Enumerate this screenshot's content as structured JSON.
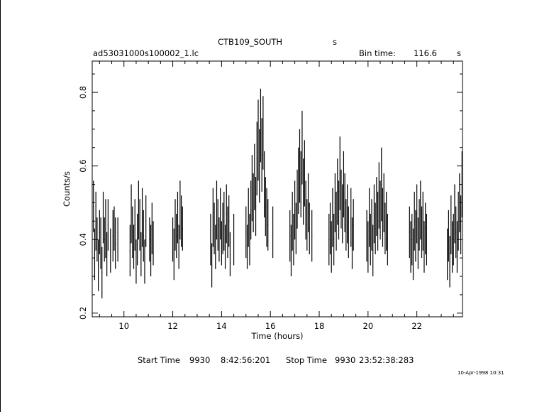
{
  "header": {
    "object": "CTB109_SOUTH",
    "object_unit": "s",
    "filename": "ad53031000s100002_1.lc",
    "bin_label": "Bin time:",
    "bin_value": "116.6",
    "bin_unit": "s"
  },
  "footer": {
    "start_label": "Start Time",
    "start_day": "9930",
    "start_time": "8:42:56:201",
    "stop_label": "Stop Time",
    "stop_day": "9930",
    "stop_time": "23:52:38:283",
    "plot_date": "10-Apr-1998 10:31"
  },
  "chart_data": {
    "type": "scatter",
    "xlabel": "Time (hours)",
    "ylabel": "Counts/s",
    "xlim": [
      8.7,
      23.87
    ],
    "ylim": [
      0.19,
      0.885
    ],
    "xticks": [
      10,
      12,
      14,
      16,
      18,
      20,
      22
    ],
    "yticks": [
      0.2,
      0.4,
      0.6,
      0.8
    ],
    "xtick_labels": [
      "10",
      "12",
      "14",
      "16",
      "18",
      "20",
      "22"
    ],
    "ytick_labels": [
      "0.2",
      "0.4",
      "0.6",
      "0.8"
    ],
    "error_bars": true,
    "grid": false,
    "series": [
      {
        "x": [
          8.75,
          8.8,
          8.85,
          8.9,
          8.95,
          9.0,
          9.05,
          9.1,
          9.15,
          9.2,
          9.25,
          9.3,
          9.35,
          9.45,
          9.55,
          9.6,
          9.65,
          9.75,
          10.25,
          10.3,
          10.35,
          10.4,
          10.45,
          10.5,
          10.55,
          10.6,
          10.65,
          10.7,
          10.75,
          10.8,
          10.85,
          10.9,
          11.05,
          11.1,
          11.15,
          11.2,
          12.0,
          12.05,
          12.1,
          12.15,
          12.2,
          12.25,
          12.3,
          12.35,
          12.4,
          13.55,
          13.6,
          13.65,
          13.7,
          13.75,
          13.8,
          13.85,
          13.9,
          13.95,
          14.0,
          14.05,
          14.1,
          14.15,
          14.2,
          14.25,
          14.3,
          14.35,
          14.5,
          15.0,
          15.05,
          15.1,
          15.15,
          15.2,
          15.25,
          15.3,
          15.35,
          15.4,
          15.45,
          15.5,
          15.55,
          15.6,
          15.65,
          15.7,
          15.75,
          15.8,
          15.85,
          15.9,
          16.1,
          16.8,
          16.85,
          16.9,
          16.95,
          17.0,
          17.05,
          17.1,
          17.15,
          17.2,
          17.25,
          17.3,
          17.35,
          17.4,
          17.45,
          17.5,
          17.55,
          17.6,
          17.7,
          18.4,
          18.45,
          18.5,
          18.55,
          18.6,
          18.65,
          18.7,
          18.75,
          18.8,
          18.85,
          18.9,
          18.95,
          19.0,
          19.05,
          19.1,
          19.15,
          19.2,
          19.3,
          19.35,
          19.4,
          19.95,
          20.0,
          20.05,
          20.1,
          20.15,
          20.2,
          20.25,
          20.3,
          20.35,
          20.4,
          20.45,
          20.5,
          20.55,
          20.6,
          20.65,
          20.7,
          20.75,
          20.8,
          21.7,
          21.75,
          21.8,
          21.85,
          21.9,
          21.95,
          22.0,
          22.05,
          22.1,
          22.15,
          22.2,
          22.25,
          22.3,
          22.35,
          22.4,
          23.25,
          23.3,
          23.35,
          23.4,
          23.45,
          23.5,
          23.55,
          23.6,
          23.65,
          23.7,
          23.75,
          23.8,
          23.85
        ],
        "y": [
          0.49,
          0.36,
          0.45,
          0.4,
          0.33,
          0.42,
          0.39,
          0.31,
          0.46,
          0.4,
          0.43,
          0.36,
          0.44,
          0.37,
          0.41,
          0.43,
          0.39,
          0.4,
          0.37,
          0.47,
          0.42,
          0.38,
          0.44,
          0.34,
          0.4,
          0.48,
          0.44,
          0.36,
          0.46,
          0.41,
          0.34,
          0.45,
          0.4,
          0.37,
          0.43,
          0.39,
          0.4,
          0.36,
          0.44,
          0.41,
          0.46,
          0.38,
          0.48,
          0.45,
          0.43,
          0.4,
          0.33,
          0.46,
          0.43,
          0.38,
          0.48,
          0.44,
          0.4,
          0.47,
          0.39,
          0.43,
          0.45,
          0.38,
          0.47,
          0.42,
          0.45,
          0.36,
          0.4,
          0.42,
          0.38,
          0.46,
          0.4,
          0.48,
          0.54,
          0.5,
          0.57,
          0.49,
          0.62,
          0.67,
          0.6,
          0.71,
          0.63,
          0.69,
          0.55,
          0.49,
          0.46,
          0.44,
          0.42,
          0.41,
          0.37,
          0.45,
          0.4,
          0.48,
          0.43,
          0.51,
          0.56,
          0.6,
          0.55,
          0.65,
          0.53,
          0.58,
          0.48,
          0.44,
          0.5,
          0.43,
          0.41,
          0.4,
          0.43,
          0.38,
          0.46,
          0.4,
          0.5,
          0.45,
          0.53,
          0.48,
          0.58,
          0.51,
          0.47,
          0.55,
          0.5,
          0.44,
          0.47,
          0.42,
          0.46,
          0.39,
          0.44,
          0.41,
          0.38,
          0.46,
          0.4,
          0.44,
          0.37,
          0.47,
          0.43,
          0.49,
          0.45,
          0.52,
          0.48,
          0.55,
          0.46,
          0.5,
          0.43,
          0.45,
          0.4,
          0.42,
          0.38,
          0.4,
          0.36,
          0.45,
          0.41,
          0.47,
          0.39,
          0.44,
          0.48,
          0.42,
          0.45,
          0.38,
          0.43,
          0.4,
          0.36,
          0.41,
          0.34,
          0.44,
          0.38,
          0.4,
          0.47,
          0.42,
          0.38,
          0.45,
          0.5,
          0.44,
          0.55
        ],
        "err": [
          0.07,
          0.07,
          0.08,
          0.06,
          0.07,
          0.06,
          0.07,
          0.07,
          0.07,
          0.06,
          0.08,
          0.06,
          0.07,
          0.06,
          0.07,
          0.06,
          0.07,
          0.06,
          0.07,
          0.08,
          0.07,
          0.06,
          0.07,
          0.06,
          0.07,
          0.08,
          0.07,
          0.06,
          0.08,
          0.07,
          0.06,
          0.07,
          0.06,
          0.07,
          0.07,
          0.06,
          0.06,
          0.07,
          0.07,
          0.06,
          0.07,
          0.06,
          0.08,
          0.07,
          0.06,
          0.07,
          0.06,
          0.08,
          0.07,
          0.06,
          0.08,
          0.07,
          0.06,
          0.07,
          0.06,
          0.07,
          0.08,
          0.06,
          0.08,
          0.07,
          0.07,
          0.06,
          0.07,
          0.07,
          0.06,
          0.08,
          0.07,
          0.08,
          0.09,
          0.08,
          0.09,
          0.08,
          0.1,
          0.11,
          0.1,
          0.1,
          0.1,
          0.1,
          0.09,
          0.08,
          0.08,
          0.07,
          0.07,
          0.07,
          0.07,
          0.08,
          0.07,
          0.08,
          0.07,
          0.08,
          0.09,
          0.1,
          0.09,
          0.1,
          0.09,
          0.09,
          0.08,
          0.07,
          0.08,
          0.07,
          0.07,
          0.07,
          0.07,
          0.07,
          0.08,
          0.07,
          0.08,
          0.08,
          0.09,
          0.08,
          0.1,
          0.08,
          0.08,
          0.09,
          0.08,
          0.07,
          0.08,
          0.07,
          0.08,
          0.07,
          0.07,
          0.07,
          0.07,
          0.08,
          0.07,
          0.07,
          0.07,
          0.08,
          0.07,
          0.08,
          0.08,
          0.09,
          0.08,
          0.1,
          0.08,
          0.08,
          0.07,
          0.08,
          0.07,
          0.07,
          0.07,
          0.07,
          0.07,
          0.08,
          0.07,
          0.08,
          0.07,
          0.07,
          0.08,
          0.07,
          0.08,
          0.07,
          0.07,
          0.07,
          0.07,
          0.07,
          0.07,
          0.08,
          0.07,
          0.07,
          0.08,
          0.07,
          0.07,
          0.08,
          0.08,
          0.08,
          0.09
        ]
      }
    ]
  }
}
